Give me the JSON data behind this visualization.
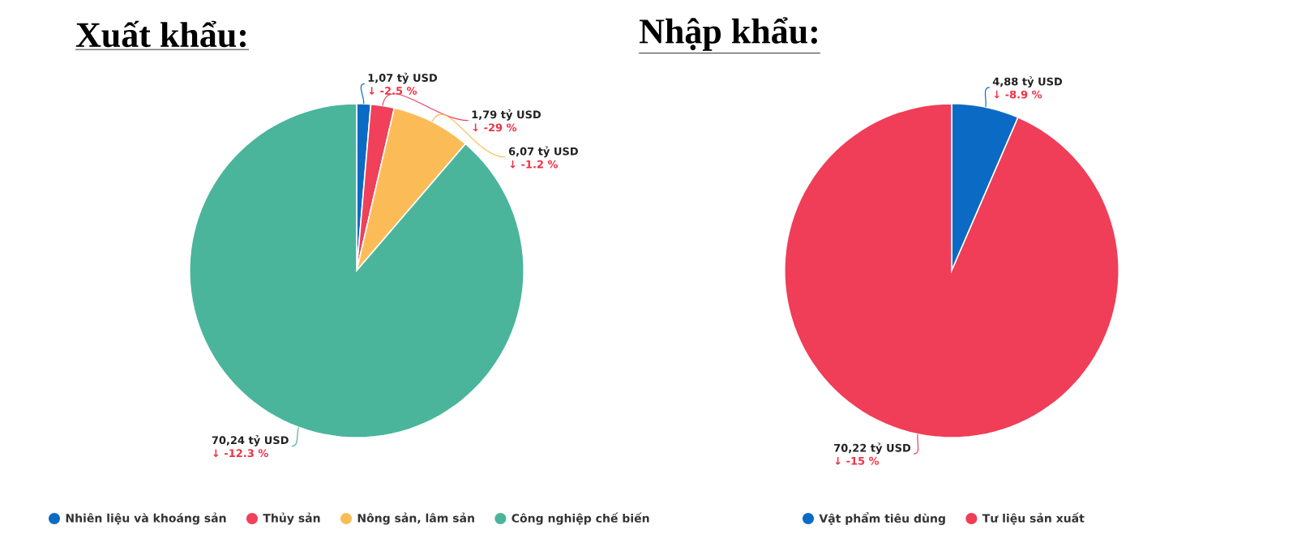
{
  "chart_data": [
    {
      "type": "pie",
      "title": "Xuất khẩu:",
      "categories": [
        "Nhiên liệu và khoáng sản",
        "Thủy sản",
        "Nông sản, lâm sản",
        "Công nghiệp chế biến"
      ],
      "values": [
        1.07,
        1.79,
        6.07,
        70.24
      ],
      "colors": [
        "#0b6bc4",
        "#f0405a",
        "#fbbc58",
        "#4ab59b"
      ],
      "value_labels": [
        "1,07 tỷ USD",
        "1,79 tỷ USD",
        "6,07 tỷ USD",
        "70,24 tỷ USD"
      ],
      "annotations": [
        "↓ -2.5 %",
        "↓ -29 %",
        "↓ -1.2 %",
        "↓ -12.3 %"
      ],
      "legend": "bottom"
    },
    {
      "type": "pie",
      "title": "Nhập khẩu:",
      "categories": [
        "Vật phẩm tiêu dùng",
        "Tư liệu sản xuất"
      ],
      "values": [
        4.88,
        70.22
      ],
      "colors": [
        "#0b6bc4",
        "#f03d58"
      ],
      "value_labels": [
        "4,88 tỷ USD",
        "70,22 tỷ USD"
      ],
      "annotations": [
        "↓ -8.9 %",
        "↓ -15 %"
      ],
      "legend": "bottom"
    }
  ]
}
